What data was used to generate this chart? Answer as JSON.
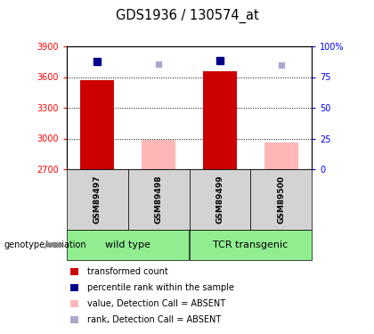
{
  "title": "GDS1936 / 130574_at",
  "samples": [
    "GSM89497",
    "GSM89498",
    "GSM89499",
    "GSM89500"
  ],
  "ylim_left": [
    2700,
    3900
  ],
  "ylim_right": [
    0,
    100
  ],
  "yticks_left": [
    2700,
    3000,
    3300,
    3600,
    3900
  ],
  "yticks_right": [
    0,
    25,
    50,
    75,
    100
  ],
  "ytick_labels_right": [
    "0",
    "25",
    "50",
    "75",
    "100%"
  ],
  "red_bars": [
    3570,
    null,
    3660,
    null
  ],
  "pink_bars": [
    null,
    2985,
    null,
    2960
  ],
  "blue_squares": [
    3755,
    null,
    3760,
    null
  ],
  "lavender_squares": [
    null,
    3730,
    null,
    3720
  ],
  "red_color": "#cc0000",
  "pink_color": "#ffb6b6",
  "blue_color": "#00008b",
  "lavender_color": "#aaaacc",
  "grid_vals": [
    3000,
    3300,
    3600
  ],
  "groups": [
    {
      "name": "wild type",
      "cols": [
        0,
        1
      ]
    },
    {
      "name": "TCR transgenic",
      "cols": [
        2,
        3
      ]
    }
  ],
  "legend_items": [
    {
      "color": "#cc0000",
      "label": "transformed count"
    },
    {
      "color": "#00008b",
      "label": "percentile rank within the sample"
    },
    {
      "color": "#ffb6b6",
      "label": "value, Detection Call = ABSENT"
    },
    {
      "color": "#aaaacc",
      "label": "rank, Detection Call = ABSENT"
    }
  ]
}
